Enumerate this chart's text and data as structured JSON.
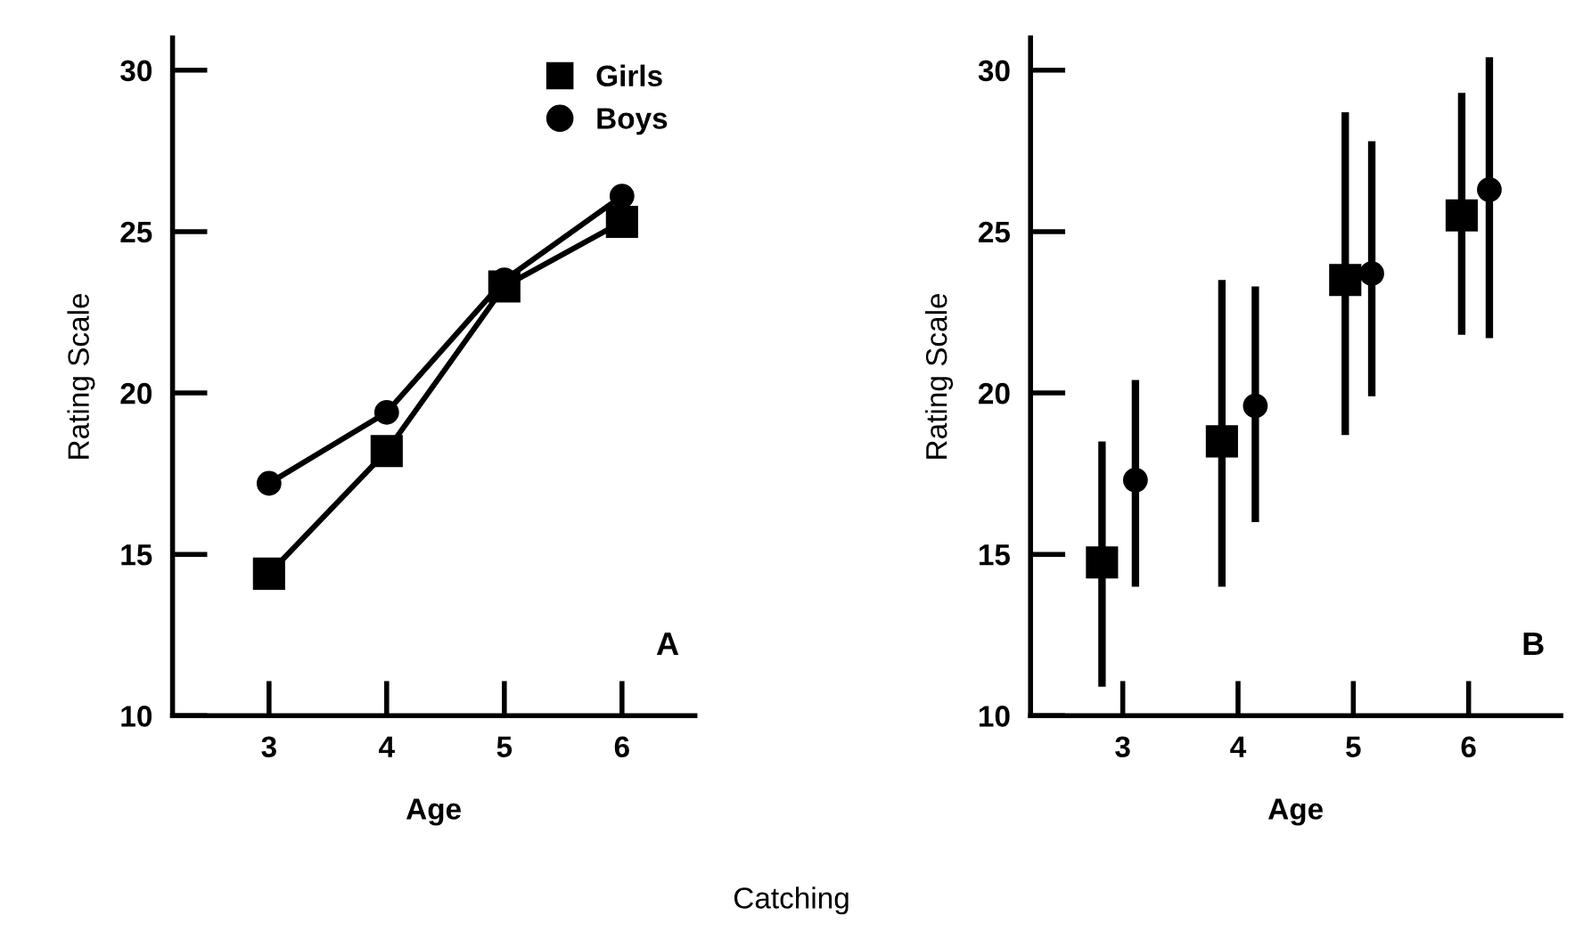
{
  "chart_data": [
    {
      "type": "line",
      "xlabel": "Age",
      "ylabel": "Rating Scale",
      "xlim": [
        2.18,
        6.62
      ],
      "xticks": [
        3,
        4,
        5,
        6
      ],
      "ylim": [
        10,
        31
      ],
      "yticks": [
        10,
        15,
        20,
        25,
        30
      ],
      "grid": false,
      "legend": "top right",
      "annotations": [
        "A",
        "Catching"
      ],
      "series": [
        {
          "name": "Girls",
          "color": "#000000",
          "marker": "square",
          "x": [
            3,
            4,
            5,
            6
          ],
          "values": [
            14.4,
            18.2,
            23.3,
            25.3
          ]
        },
        {
          "name": "Boys",
          "color": "#000000",
          "marker": "circle",
          "x": [
            3,
            4,
            5,
            6
          ],
          "values": [
            17.2,
            19.4,
            23.5,
            26.1
          ]
        }
      ]
    },
    {
      "type": "scatter",
      "xlabel": "Age",
      "ylabel": "Rating Scale",
      "xlim": [
        2.2,
        6.8
      ],
      "xticks": [
        3,
        4,
        5,
        6
      ],
      "ylim": [
        10,
        31
      ],
      "yticks": [
        10,
        15,
        20,
        25,
        30
      ],
      "grid": false,
      "legend": false,
      "annotations": [
        "B"
      ],
      "series": [
        {
          "color": "#000000",
          "marker": "square",
          "x": [
            2.82,
            3.86,
            4.93,
            5.94
          ],
          "values": [
            14.75,
            18.5,
            23.5,
            25.5
          ],
          "errors": [
            [
              10.9,
              18.5
            ],
            [
              14.0,
              23.5
            ],
            [
              18.7,
              28.7
            ],
            [
              21.8,
              29.3
            ]
          ]
        },
        {
          "color": "#000000",
          "marker": "circle",
          "x": [
            3.11,
            4.15,
            5.16,
            6.18
          ],
          "values": [
            17.3,
            19.6,
            23.7,
            26.3
          ],
          "errors": [
            [
              14.0,
              20.4
            ],
            [
              16.0,
              23.3
            ],
            [
              19.9,
              27.8
            ],
            [
              21.7,
              30.4
            ]
          ]
        }
      ]
    }
  ]
}
